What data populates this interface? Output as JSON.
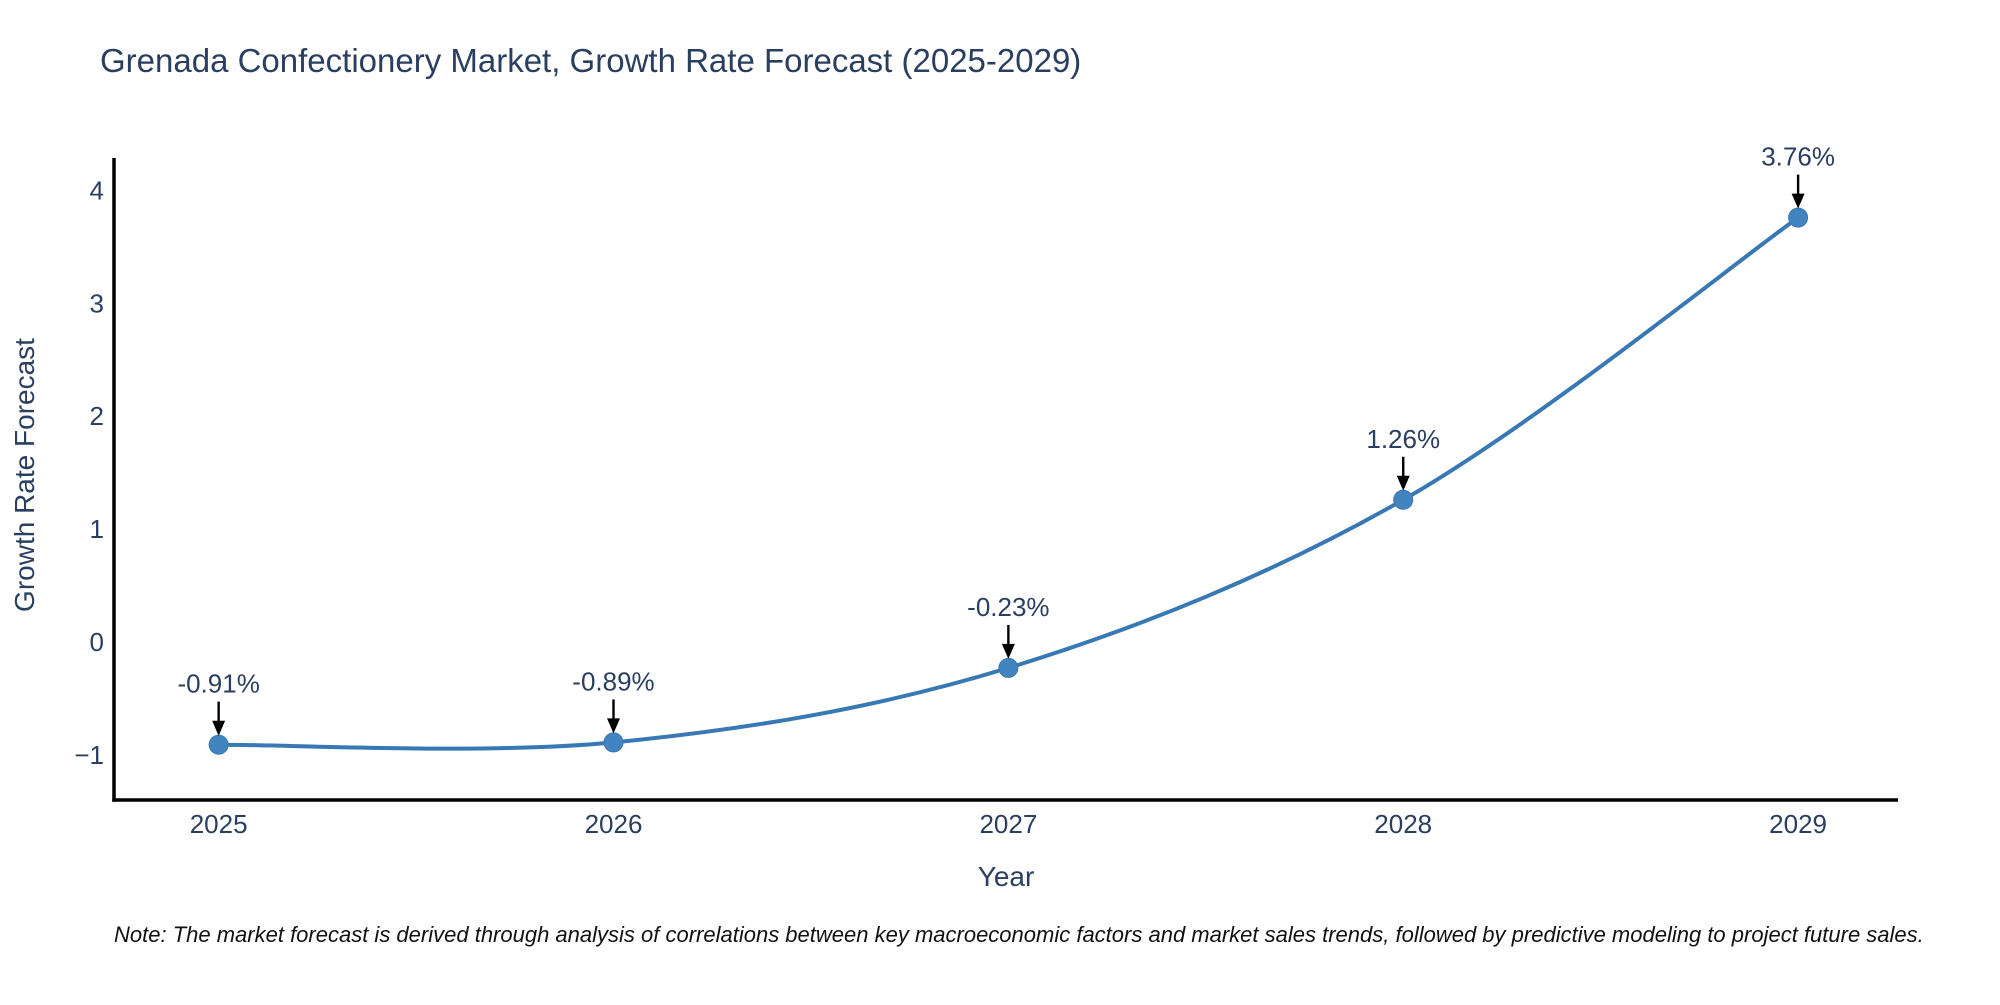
{
  "title": "Grenada Confectionery Market, Growth Rate Forecast (2025-2029)",
  "note": "Note: The market forecast is derived through analysis of correlations between key macroeconomic factors and market sales trends, followed by predictive modeling to project future sales.",
  "chart_data": {
    "type": "line",
    "line_shape": "spline",
    "title": "Grenada Confectionery Market, Growth Rate Forecast (2025-2029)",
    "xlabel": "Year",
    "ylabel": "Growth Rate Forecast",
    "x": [
      2025,
      2026,
      2027,
      2028,
      2029
    ],
    "y": [
      -0.91,
      -0.89,
      -0.23,
      1.26,
      3.76
    ],
    "point_labels": [
      "-0.91%",
      "-0.89%",
      "-0.23%",
      "1.26%",
      "3.76%"
    ],
    "x_ticks": [
      "2025",
      "2026",
      "2027",
      "2028",
      "2029"
    ],
    "x_tick_values": [
      2025,
      2026,
      2027,
      2028,
      2029
    ],
    "y_ticks": [
      "4",
      "3",
      "2",
      "1",
      "0",
      "−1"
    ],
    "y_tick_values": [
      4,
      3,
      2,
      1,
      0,
      -1
    ],
    "xlim": [
      2024.735,
      2029.253
    ],
    "ylim": [
      -1.4,
      4.27
    ],
    "grid": false,
    "legend": "none",
    "colors": {
      "line": "#3878b4",
      "marker": "#4184bf",
      "axis": "#000000",
      "chart_text": "#2a3f5f",
      "annotation_arrow": "#000000",
      "note_text": "#111111"
    }
  }
}
